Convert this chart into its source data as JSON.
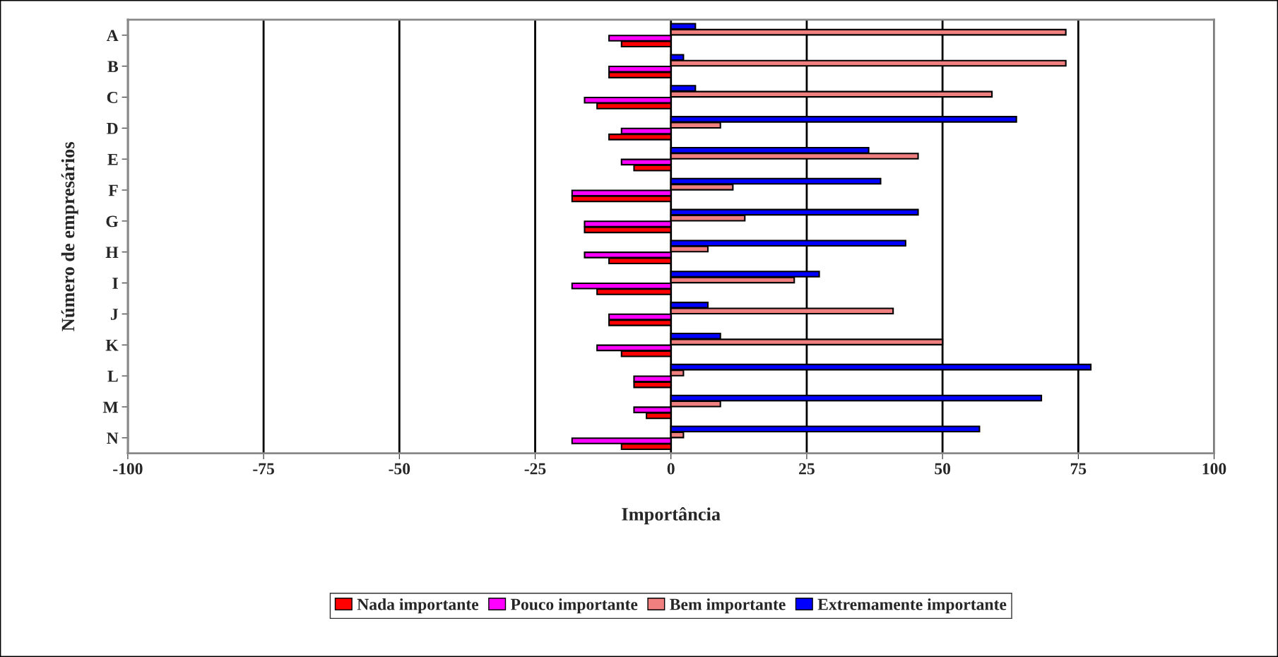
{
  "chart_data": {
    "type": "bar",
    "orientation": "horizontal",
    "xlabel": "Importância",
    "ylabel": "Número de empresários",
    "categories": [
      "A",
      "B",
      "C",
      "D",
      "E",
      "F",
      "G",
      "H",
      "I",
      "J",
      "K",
      "L",
      "M",
      "N"
    ],
    "series": [
      {
        "name": "Nada importante",
        "color": "#ff0000",
        "values": [
          -9.1,
          -11.4,
          -13.6,
          -11.4,
          -6.8,
          -18.2,
          -15.9,
          -11.4,
          -13.6,
          -11.4,
          -9.1,
          -6.8,
          -4.5,
          -9.1
        ]
      },
      {
        "name": "Pouco importante",
        "color": "#ff00ff",
        "values": [
          -11.4,
          -11.4,
          -15.9,
          -9.1,
          -9.1,
          -18.2,
          -15.9,
          -15.9,
          -18.2,
          -11.4,
          -13.6,
          -6.8,
          -6.8,
          -18.2
        ]
      },
      {
        "name": "Bem importante",
        "color": "#f08080",
        "values": [
          72.7,
          72.7,
          59.1,
          9.1,
          45.5,
          11.4,
          13.6,
          6.8,
          22.7,
          40.9,
          50.0,
          2.3,
          9.1,
          2.3
        ]
      },
      {
        "name": "Extremamente importante",
        "color": "#0000ff",
        "values": [
          4.5,
          2.3,
          4.5,
          63.6,
          36.4,
          38.6,
          45.5,
          43.2,
          27.3,
          6.8,
          9.1,
          77.3,
          68.2,
          56.8
        ]
      }
    ],
    "xlim": [
      -100,
      100
    ],
    "xticks": [
      -100,
      -75,
      -50,
      -25,
      0,
      25,
      50,
      75,
      100
    ],
    "grid": "x",
    "legend": "bottom"
  }
}
